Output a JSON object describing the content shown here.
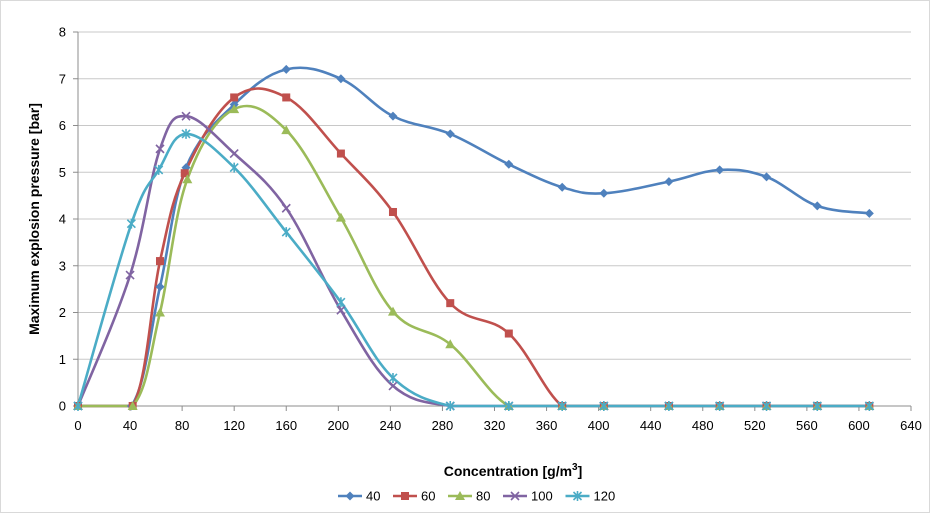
{
  "chart_data": {
    "type": "line",
    "title": "",
    "xlabel": "Concentration [g/m",
    "xlabel_sup": "3",
    "xlabel_end": "]",
    "ylabel": "Maximum explosion pressure [bar]",
    "xlim": [
      0,
      640
    ],
    "ylim": [
      0,
      8
    ],
    "x_ticks": [
      "0",
      "40",
      "80",
      "120",
      "160",
      "200",
      "240",
      "280",
      "320",
      "360",
      "400",
      "440",
      "480",
      "520",
      "560",
      "600",
      "640"
    ],
    "y_ticks": [
      "0",
      "1",
      "2",
      "3",
      "4",
      "5",
      "6",
      "7",
      "8"
    ],
    "grid": "horizontal",
    "legend_position": "bottom",
    "smooth": true,
    "series": [
      {
        "name": "40",
        "color": "#4f81bd",
        "marker": "diamond",
        "x": [
          0,
          41,
          63,
          83,
          120,
          160,
          202,
          242,
          286,
          331,
          372,
          404,
          454,
          493,
          529,
          568,
          608
        ],
        "y": [
          0,
          0,
          2.55,
          5.1,
          6.45,
          7.2,
          7.0,
          6.2,
          5.82,
          5.17,
          4.68,
          4.55,
          4.8,
          5.05,
          4.9,
          4.28,
          4.12
        ]
      },
      {
        "name": "60",
        "color": "#c0504d",
        "marker": "square",
        "x": [
          0,
          42,
          63,
          82,
          120,
          160,
          202,
          242,
          286,
          331,
          372,
          404,
          454,
          493,
          529,
          568,
          608
        ],
        "y": [
          0,
          0,
          3.1,
          4.98,
          6.6,
          6.6,
          5.4,
          4.15,
          2.2,
          1.55,
          0,
          0,
          0,
          0,
          0,
          0,
          0
        ]
      },
      {
        "name": "80",
        "color": "#9bbb59",
        "marker": "triangle",
        "x": [
          0,
          42,
          63,
          84,
          120,
          160,
          202,
          242,
          286,
          331,
          372,
          404,
          454,
          493,
          529,
          568,
          608
        ],
        "y": [
          0,
          0,
          2.0,
          4.85,
          6.35,
          5.9,
          4.03,
          2.02,
          1.32,
          0,
          0,
          0,
          0,
          0,
          0,
          0,
          0
        ]
      },
      {
        "name": "100",
        "color": "#8064a2",
        "marker": "x",
        "x": [
          0,
          40,
          63,
          83,
          120,
          160,
          202,
          242,
          286,
          331,
          372,
          404,
          454,
          493,
          529,
          568,
          608
        ],
        "y": [
          0,
          2.8,
          5.5,
          6.2,
          5.4,
          4.23,
          2.05,
          0.43,
          0,
          0,
          0,
          0,
          0,
          0,
          0,
          0,
          0
        ]
      },
      {
        "name": "120",
        "color": "#4bacc6",
        "marker": "star",
        "x": [
          0,
          41,
          62,
          83,
          120,
          160,
          202,
          242,
          286,
          331,
          372,
          404,
          454,
          493,
          529,
          568,
          608
        ],
        "y": [
          0,
          3.9,
          5.05,
          5.82,
          5.1,
          3.72,
          2.22,
          0.6,
          0,
          0,
          0,
          0,
          0,
          0,
          0,
          0,
          0
        ]
      }
    ]
  }
}
